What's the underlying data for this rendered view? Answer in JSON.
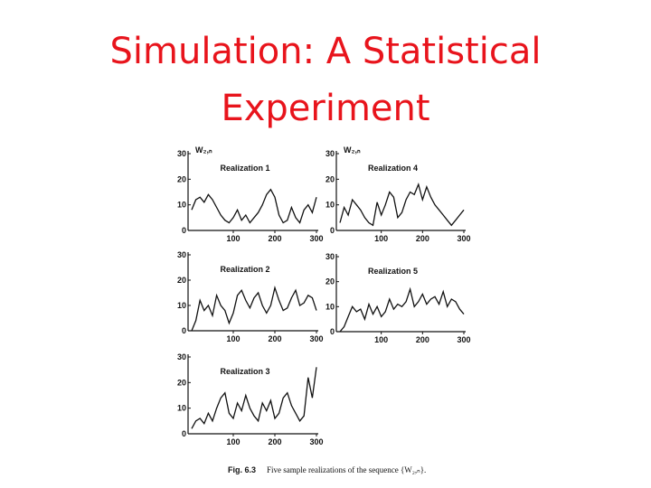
{
  "title_lines": [
    "Simulation: A Statistical",
    "Experiment"
  ],
  "figure_label": "Fig. 6.3",
  "caption": "Five sample realizations of the sequence {W₂,ₙ}.",
  "chart_data": [
    {
      "type": "line",
      "title": "Realization 1",
      "y_label": "W₂,ₙ",
      "color": "#111111",
      "x": [
        0,
        10,
        20,
        30,
        40,
        50,
        60,
        70,
        80,
        90,
        100,
        110,
        120,
        130,
        140,
        150,
        160,
        170,
        180,
        190,
        200,
        210,
        220,
        230,
        240,
        250,
        260,
        270,
        280,
        290,
        300
      ],
      "values": [
        8,
        12,
        13,
        11,
        14,
        12,
        9,
        6,
        4,
        3,
        5,
        8,
        4,
        6,
        3,
        5,
        7,
        10,
        14,
        16,
        13,
        6,
        3,
        4,
        9,
        5,
        3,
        8,
        10,
        7,
        13
      ],
      "xlim": [
        0,
        300
      ],
      "xticks": [
        100,
        200,
        300
      ],
      "ylim": [
        0,
        30
      ],
      "yticks": [
        0,
        10,
        20,
        30
      ]
    },
    {
      "type": "line",
      "title": "Realization 2",
      "color": "#111111",
      "x": [
        0,
        10,
        20,
        30,
        40,
        50,
        60,
        70,
        80,
        90,
        100,
        110,
        120,
        130,
        140,
        150,
        160,
        170,
        180,
        190,
        200,
        210,
        220,
        230,
        240,
        250,
        260,
        270,
        280,
        290,
        300
      ],
      "values": [
        0,
        4,
        12,
        8,
        10,
        6,
        14,
        10,
        8,
        3,
        7,
        14,
        16,
        12,
        9,
        13,
        15,
        10,
        7,
        10,
        17,
        12,
        8,
        9,
        13,
        16,
        10,
        11,
        14,
        13,
        8
      ],
      "xlim": [
        0,
        300
      ],
      "xticks": [
        100,
        200,
        300
      ],
      "ylim": [
        0,
        30
      ],
      "yticks": [
        0,
        10,
        20,
        30
      ]
    },
    {
      "type": "line",
      "title": "Realization 3",
      "color": "#111111",
      "x": [
        0,
        10,
        20,
        30,
        40,
        50,
        60,
        70,
        80,
        90,
        100,
        110,
        120,
        130,
        140,
        150,
        160,
        170,
        180,
        190,
        200,
        210,
        220,
        230,
        240,
        250,
        260,
        270,
        280,
        290,
        300
      ],
      "values": [
        2,
        5,
        6,
        4,
        8,
        5,
        10,
        14,
        16,
        8,
        6,
        12,
        9,
        15,
        10,
        7,
        5,
        12,
        9,
        13,
        6,
        8,
        14,
        16,
        11,
        8,
        5,
        7,
        22,
        14,
        26
      ],
      "xlim": [
        0,
        300
      ],
      "xticks": [
        100,
        200,
        300
      ],
      "ylim": [
        0,
        30
      ],
      "yticks": [
        0,
        10,
        20,
        30
      ]
    },
    {
      "type": "line",
      "title": "Realization 4",
      "y_label": "W₂,ₙ",
      "color": "#111111",
      "x": [
        0,
        10,
        20,
        30,
        40,
        50,
        60,
        70,
        80,
        90,
        100,
        110,
        120,
        130,
        140,
        150,
        160,
        170,
        180,
        190,
        200,
        210,
        220,
        230,
        240,
        250,
        260,
        270,
        280,
        290,
        300
      ],
      "values": [
        3,
        9,
        6,
        12,
        10,
        8,
        5,
        3,
        2,
        11,
        6,
        10,
        15,
        13,
        5,
        7,
        12,
        15,
        14,
        18,
        12,
        17,
        13,
        10,
        8,
        6,
        4,
        2,
        4,
        6,
        8
      ],
      "xlim": [
        0,
        300
      ],
      "xticks": [
        100,
        200,
        300
      ],
      "ylim": [
        0,
        30
      ],
      "yticks": [
        0,
        10,
        20,
        30
      ]
    },
    {
      "type": "line",
      "title": "Realization 5",
      "color": "#111111",
      "x": [
        0,
        10,
        20,
        30,
        40,
        50,
        60,
        70,
        80,
        90,
        100,
        110,
        120,
        130,
        140,
        150,
        160,
        170,
        180,
        190,
        200,
        210,
        220,
        230,
        240,
        250,
        260,
        270,
        280,
        290,
        300
      ],
      "values": [
        0,
        2,
        6,
        10,
        8,
        9,
        5,
        11,
        7,
        10,
        6,
        8,
        13,
        9,
        11,
        10,
        12,
        17,
        10,
        12,
        15,
        11,
        13,
        14,
        11,
        16,
        10,
        13,
        12,
        9,
        7
      ],
      "xlim": [
        0,
        300
      ],
      "xticks": [
        100,
        200,
        300
      ],
      "ylim": [
        0,
        30
      ],
      "yticks": [
        0,
        10,
        20,
        30
      ]
    }
  ]
}
